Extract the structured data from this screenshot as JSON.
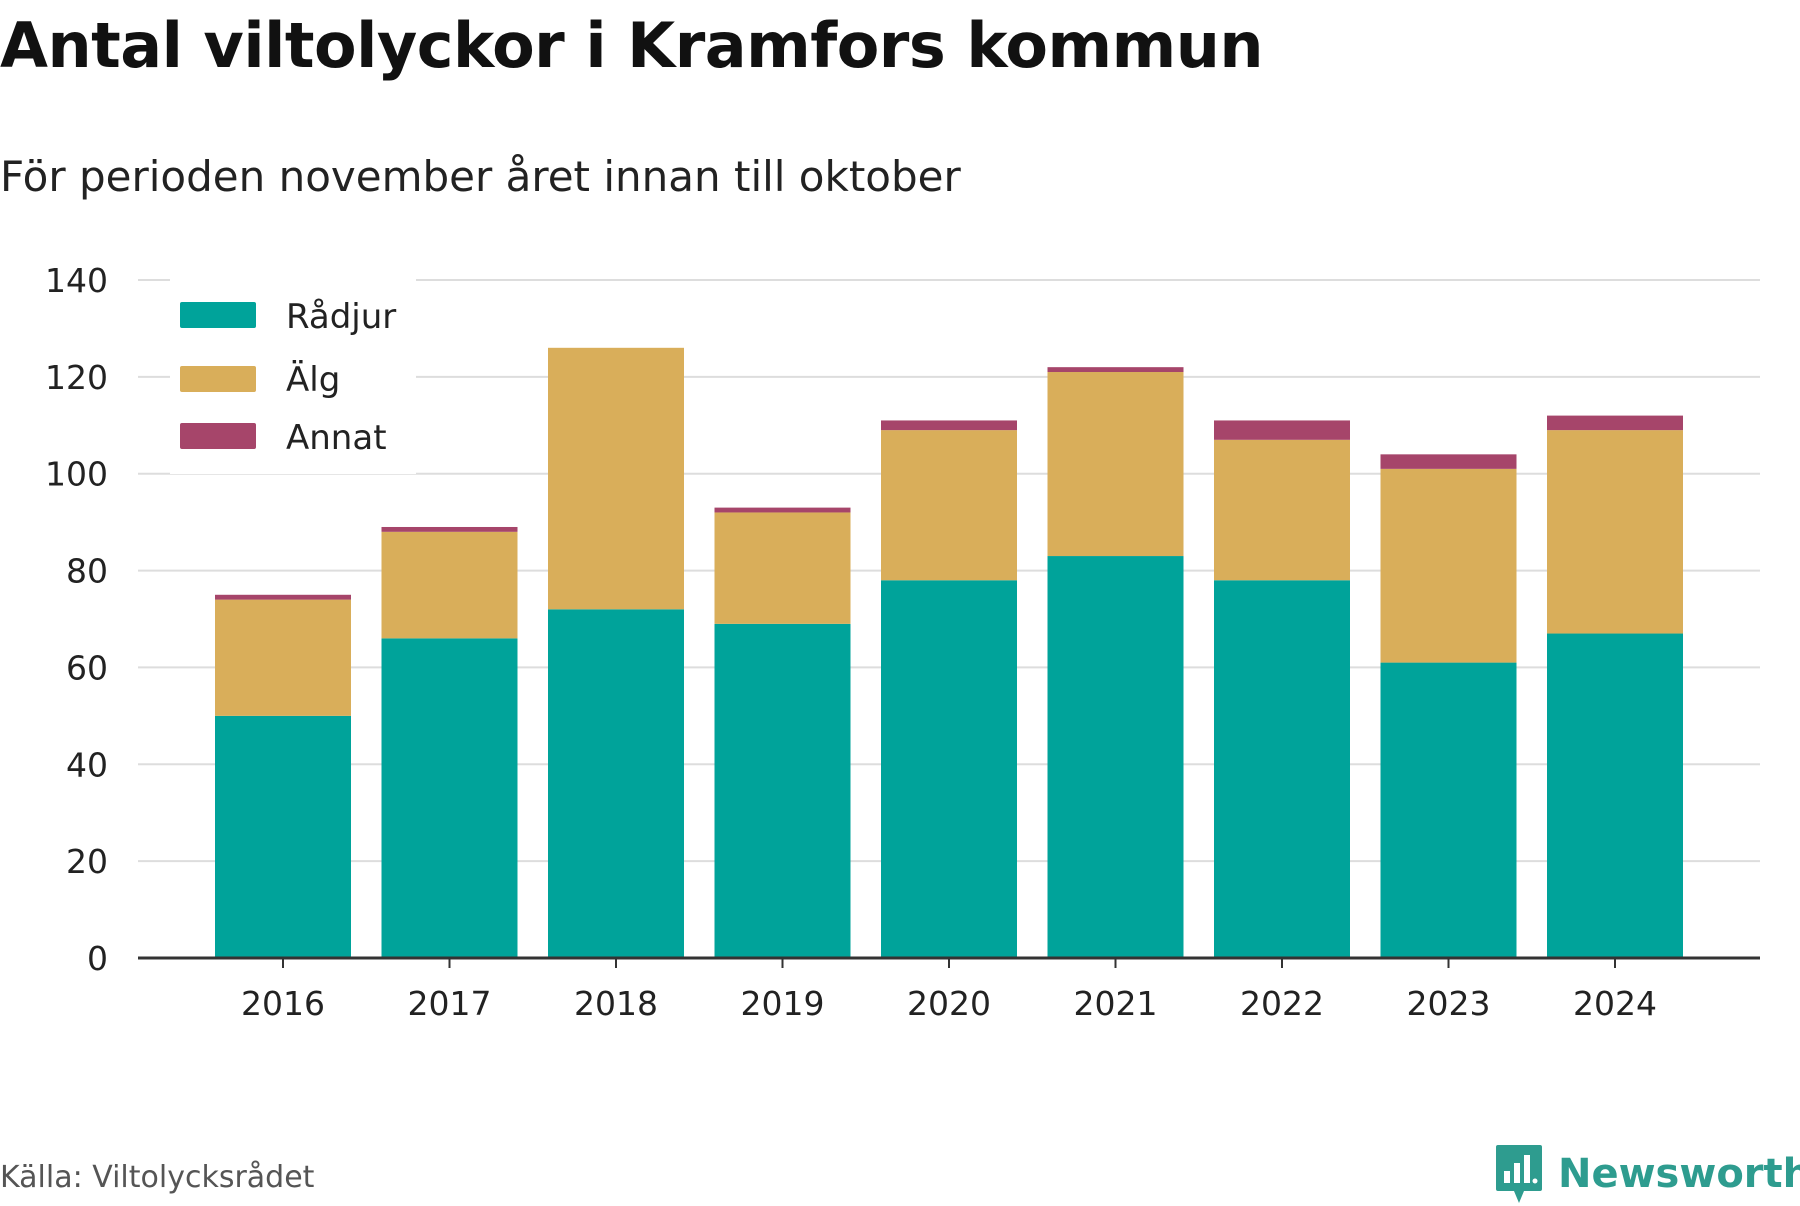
{
  "title": "Antal viltolyckor i Kramfors kommun",
  "subtitle": "För perioden november året innan till oktober",
  "source": "Källa: Viltolycksrådet",
  "brand": {
    "name": "Newsworthy",
    "icon": "newsworthy-logo-icon",
    "color": "#2e9c8f"
  },
  "colors": {
    "Rådjur": "#00a39a",
    "Älg": "#d9ae5a",
    "Annat": "#a6456a",
    "grid": "#dddddd",
    "axis": "#333333"
  },
  "chart_data": {
    "type": "bar",
    "stacked": true,
    "title": "Antal viltolyckor i Kramfors kommun",
    "subtitle": "För perioden november året innan till oktober",
    "categories": [
      "2016",
      "2017",
      "2018",
      "2019",
      "2020",
      "2021",
      "2022",
      "2023",
      "2024"
    ],
    "series": [
      {
        "name": "Rådjur",
        "values": [
          50,
          66,
          72,
          69,
          78,
          83,
          78,
          61,
          67
        ]
      },
      {
        "name": "Älg",
        "values": [
          24,
          22,
          54,
          23,
          31,
          38,
          29,
          40,
          42
        ]
      },
      {
        "name": "Annat",
        "values": [
          1,
          1,
          0,
          1,
          2,
          1,
          4,
          3,
          3
        ]
      }
    ],
    "ylim": [
      0,
      140
    ],
    "yticks": [
      0,
      20,
      40,
      60,
      80,
      100,
      120,
      140
    ],
    "xlabel": "",
    "ylabel": "",
    "grid": true,
    "legend": "top-left"
  }
}
